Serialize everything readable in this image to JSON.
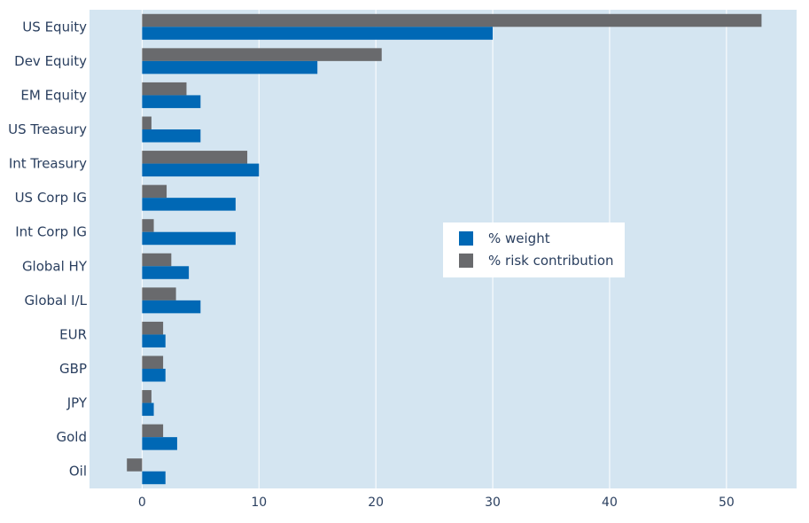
{
  "chart_data": {
    "type": "bar",
    "orientation": "horizontal",
    "categories": [
      "US Equity",
      "Dev Equity",
      "EM Equity",
      "US Treasury",
      "Int Treasury",
      "US Corp IG",
      "Int Corp IG",
      "Global HY",
      "Global I/L",
      "EUR",
      "GBP",
      "JPY",
      "Gold",
      "Oil"
    ],
    "series": [
      {
        "name": "% weight",
        "color": "#0068b5",
        "values": [
          30,
          15,
          5,
          5,
          10,
          8,
          8,
          4,
          5,
          2,
          2,
          1,
          3,
          2
        ]
      },
      {
        "name": "% risk contribution",
        "color": "#696a6d",
        "values": [
          53,
          20.5,
          3.8,
          0.8,
          9,
          2.1,
          1,
          2.5,
          2.9,
          1.8,
          1.8,
          0.8,
          1.8,
          -1.3
        ]
      }
    ],
    "xticks": [
      0,
      10,
      20,
      30,
      40,
      50
    ],
    "xlim": [
      -4.5,
      56
    ],
    "grid": true,
    "legend_position": "center-right",
    "colors": {
      "plot_background": "#d4e5f1",
      "grid": "#ffffff"
    }
  }
}
